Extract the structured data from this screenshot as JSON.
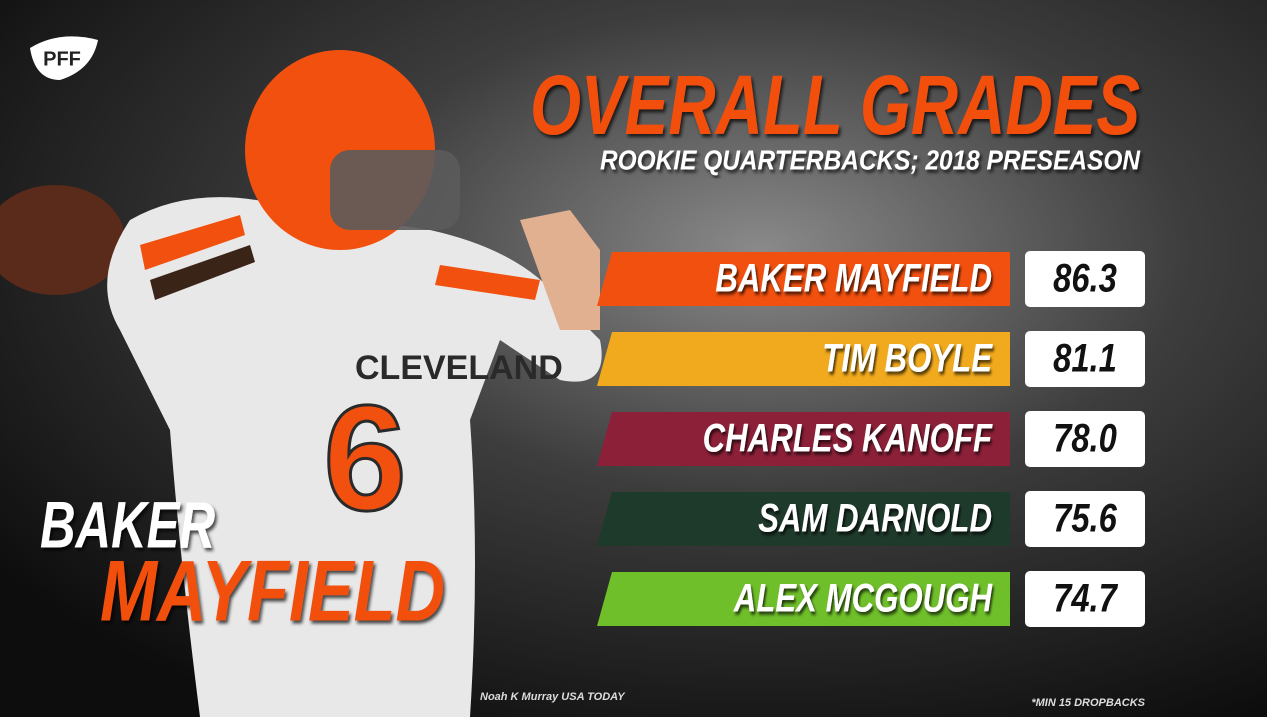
{
  "logo": "PFF",
  "header": {
    "title": "OVERALL GRADES",
    "subtitle": "ROOKIE QUARTERBACKS; 2018 PRESEASON"
  },
  "featured": {
    "first_name": "BAKER",
    "last_name": "MAYFIELD",
    "jersey_text": "CLEVELAND",
    "jersey_number": "6"
  },
  "rows": [
    {
      "name": "BAKER MAYFIELD",
      "grade": "86.3",
      "color": "#f2500f"
    },
    {
      "name": "TIM BOYLE",
      "grade": "81.1",
      "color": "#f1aa1d"
    },
    {
      "name": "CHARLES KANOFF",
      "grade": "78.0",
      "color": "#8c2038"
    },
    {
      "name": "SAM DARNOLD",
      "grade": "75.6",
      "color": "#1e3a2b"
    },
    {
      "name": "ALEX MCGOUGH",
      "grade": "74.7",
      "color": "#6fbf2a"
    }
  ],
  "credit": "Noah K Murray USA TODAY",
  "footnote": "*MIN 15 DROPBACKS"
}
